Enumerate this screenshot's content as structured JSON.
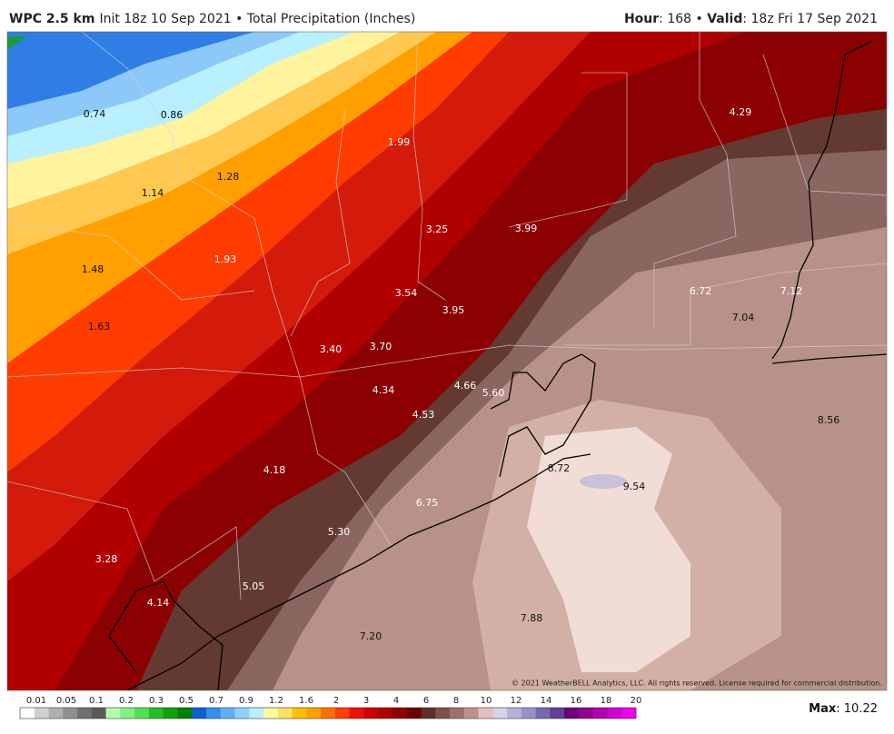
{
  "header": {
    "model": "WPC 2.5 km",
    "info": "Init 18z 10 Sep 2021 • Total Precipitation (Inches)",
    "hour_key": "Hour",
    "hour_value": ": 168 • ",
    "valid_key": "Valid",
    "valid_value": ": 18z Fri 17 Sep 2021"
  },
  "point_labels": [
    "0.74",
    "0.86",
    "1.14",
    "1.28",
    "1.48",
    "1.63",
    "1.93",
    "1.99",
    "3.25",
    "3.99",
    "4.29",
    "3.54",
    "3.95",
    "3.40",
    "3.70",
    "6.72",
    "7.12",
    "7.04",
    "4.34",
    "4.66",
    "5.60",
    "4.53",
    "8.56",
    "4.18",
    "8.72",
    "9.54",
    "6.75",
    "5.30",
    "3.28",
    "5.05",
    "4.14",
    "7.88",
    "7.20"
  ],
  "copyright": "© 2021 WeatherBELL Analytics, LLC. All rights reserved. License required for commercial distribution.",
  "colorbar": {
    "labels": [
      "0.01",
      "0.05",
      "0.1",
      "0.2",
      "0.3",
      "0.5",
      "0.7",
      "0.9",
      "1.2",
      "1.6",
      "2",
      "3",
      "4",
      "6",
      "8",
      "10",
      "12",
      "14",
      "16",
      "18",
      "20"
    ],
    "colors": [
      "#ffffff",
      "#d0d0d0",
      "#b0b0b0",
      "#909090",
      "#707070",
      "#5a5a5a",
      "#b0ffb0",
      "#80f080",
      "#50e050",
      "#20c020",
      "#10a010",
      "#008000",
      "#1060d0",
      "#3090f0",
      "#60b0f8",
      "#90d0ff",
      "#b8f0ff",
      "#fff8a0",
      "#ffe060",
      "#ffc000",
      "#ffa000",
      "#ff7000",
      "#ff4000",
      "#f01000",
      "#d00000",
      "#b00000",
      "#900000",
      "#700000",
      "#603028",
      "#805048",
      "#a07068",
      "#c09088",
      "#e0c0b8",
      "#d8d0e8",
      "#b8b0d8",
      "#9890c8",
      "#7868b0",
      "#604098",
      "#700080",
      "#900090",
      "#b000b0",
      "#d000d0",
      "#f000f0"
    ]
  },
  "max": {
    "key": "Max",
    "value": ": 10.22"
  }
}
